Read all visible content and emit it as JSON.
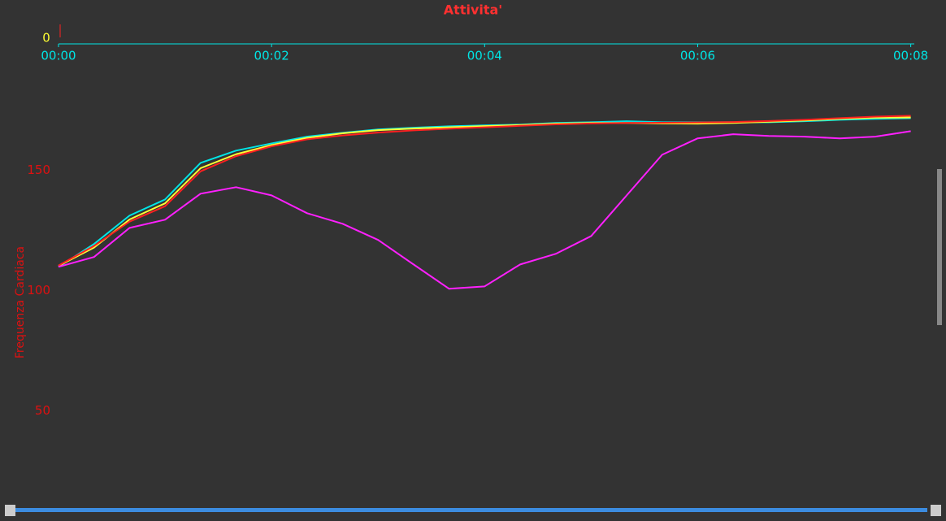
{
  "chart_data": {
    "type": "line",
    "title": "Attivita'",
    "y_label": "Frequenza Cardiaca",
    "top_axis_ticks": [
      0
    ],
    "x": [
      0,
      20,
      40,
      60,
      80,
      100,
      120,
      140,
      160,
      180,
      200,
      220,
      240,
      260,
      280,
      300,
      320,
      340,
      360,
      380,
      400,
      420,
      440,
      460,
      480
    ],
    "xlim": [
      0,
      482
    ],
    "xticks": [
      {
        "value": 0,
        "label": "00:00"
      },
      {
        "value": 120,
        "label": "00:02"
      },
      {
        "value": 240,
        "label": "00:04"
      },
      {
        "value": 360,
        "label": "00:06"
      },
      {
        "value": 480,
        "label": "00:08"
      }
    ],
    "ylim": [
      13,
      194
    ],
    "yticks": [
      50,
      100,
      150
    ],
    "series": [
      {
        "color": "#00e5e5",
        "values": [
          109.8,
          119.3,
          131.1,
          137.8,
          153,
          158.1,
          161.1,
          163.9,
          165.5,
          166.9,
          167.6,
          168.2,
          168.6,
          168.9,
          169.6,
          169.9,
          170.3,
          169.9,
          169.9,
          169.9,
          169.9,
          170.3,
          170.9,
          171.3,
          171.6
        ]
      },
      {
        "color": "#ffff33",
        "values": [
          110.2,
          117.8,
          129.5,
          136.2,
          150.8,
          156.6,
          160.4,
          163.4,
          165.3,
          166.6,
          167.3,
          167.8,
          168.3,
          168.7,
          169.3,
          169.6,
          169.6,
          169.4,
          169.3,
          169.6,
          170.1,
          170.6,
          171.3,
          171.8,
          171.9
        ]
      },
      {
        "color": "#ff2020",
        "values": [
          110.4,
          118.5,
          128.6,
          135.0,
          149.5,
          155.8,
          159.9,
          162.8,
          164.4,
          165.6,
          166.5,
          167.2,
          167.8,
          168.4,
          169.0,
          169.4,
          169.6,
          169.7,
          169.8,
          170.0,
          170.4,
          170.9,
          171.6,
          172.2,
          172.6
        ]
      },
      {
        "color": "#ff20ff",
        "values": [
          109.8,
          113.9,
          126,
          129.4,
          140.2,
          142.9,
          139.5,
          132.1,
          127.7,
          121,
          110.8,
          100.7,
          101.7,
          110.8,
          115.2,
          122.6,
          139.5,
          156.4,
          163.2,
          164.9,
          164.2,
          163.9,
          163.2,
          163.9,
          166.2
        ]
      }
    ]
  }
}
